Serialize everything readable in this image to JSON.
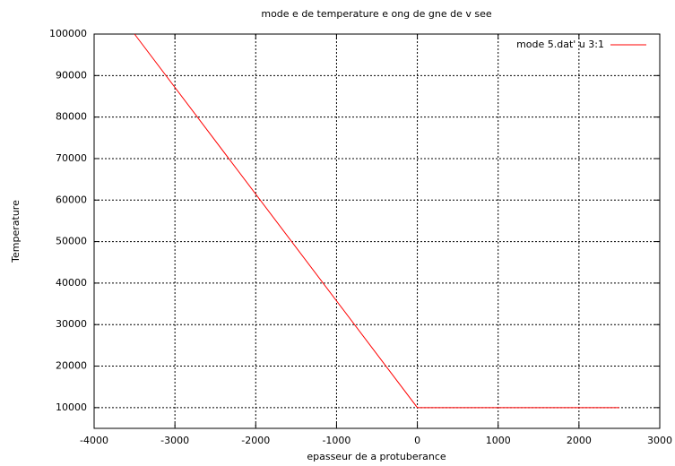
{
  "chart_data": {
    "type": "line",
    "title": "mode e de temperature e ong de  gne de v see",
    "x_label": "epasseur de a protuberance",
    "y_label": "Temperature",
    "x": [
      -3500,
      0,
      2500
    ],
    "series": [
      {
        "name": "mode 5.dat' u 3:1",
        "color": "#ff0000",
        "values": [
          100000,
          10000,
          10000
        ]
      }
    ],
    "xlim": [
      -4000,
      3000
    ],
    "xticks": [
      -4000,
      -3000,
      -2000,
      -1000,
      0,
      1000,
      2000,
      3000
    ],
    "ylim": [
      5000,
      100000
    ],
    "yticks": [
      10000,
      20000,
      30000,
      40000,
      50000,
      60000,
      70000,
      80000,
      90000,
      100000
    ],
    "grid": true,
    "legend": "top-right"
  }
}
